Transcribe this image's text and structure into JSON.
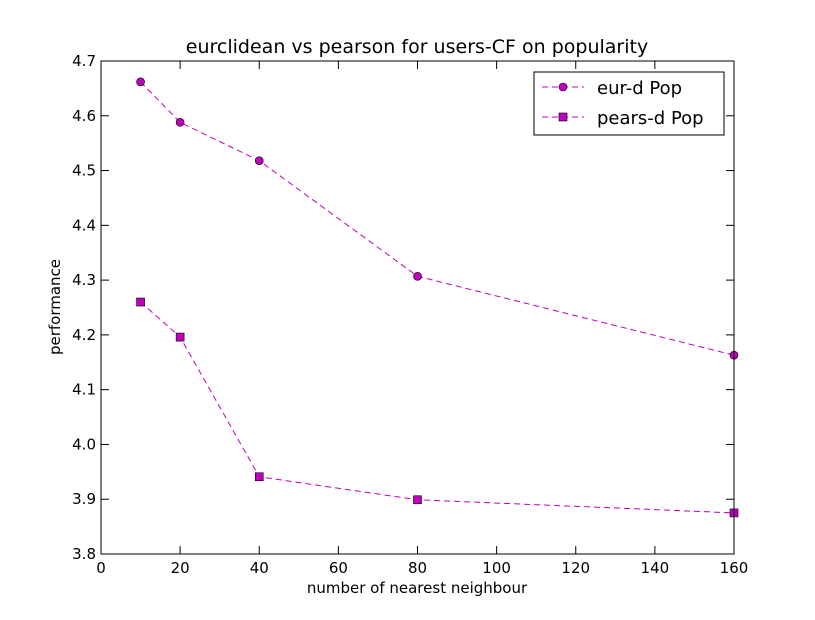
{
  "chart_data": {
    "type": "line",
    "title": "eurclidean vs pearson for users-CF on popularity",
    "xlabel": "number of nearest neighbour",
    "ylabel": "performance",
    "xlim": [
      0,
      160
    ],
    "ylim": [
      3.8,
      4.7
    ],
    "xticks": [
      "0",
      "20",
      "40",
      "60",
      "80",
      "100",
      "120",
      "140",
      "160"
    ],
    "yticks": [
      "3.8",
      "3.9",
      "4.0",
      "4.1",
      "4.2",
      "4.3",
      "4.4",
      "4.5",
      "4.6",
      "4.7"
    ],
    "grid": false,
    "legend_position": "top-right",
    "x": [
      10,
      20,
      40,
      80,
      160
    ],
    "series": [
      {
        "name": "eur-d Pop",
        "marker": "circle",
        "linestyle": "dashed",
        "color": "#bf00bf",
        "values": [
          4.662,
          4.588,
          4.518,
          4.307,
          4.163
        ]
      },
      {
        "name": "pears-d Pop",
        "marker": "square",
        "linestyle": "dashed",
        "color": "#bf00bf",
        "values": [
          4.26,
          4.196,
          3.941,
          3.899,
          3.875
        ]
      }
    ]
  }
}
